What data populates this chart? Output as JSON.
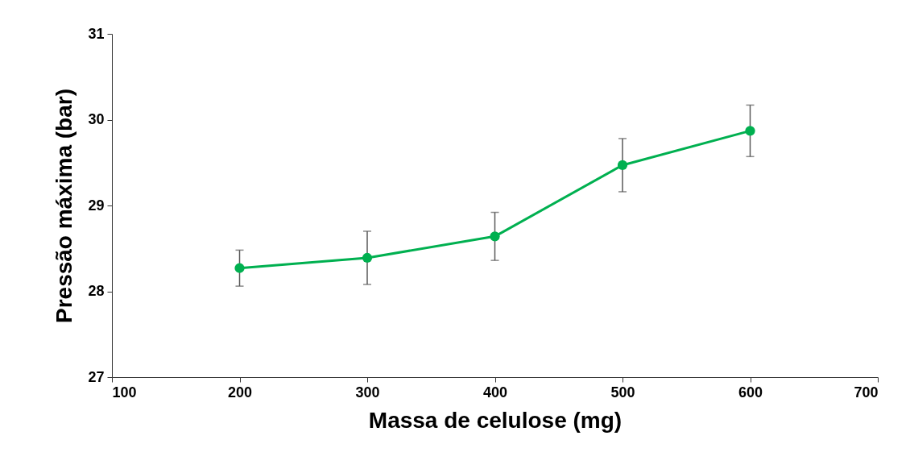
{
  "chart_data": {
    "type": "line",
    "xlabel": "Massa de celulose (mg)",
    "ylabel": "Pressão máxima (bar)",
    "x": [
      200,
      300,
      400,
      500,
      600
    ],
    "series": [
      {
        "color": "#00b050",
        "values": [
          28.27,
          28.39,
          28.64,
          29.47,
          29.87
        ],
        "errors": [
          0.21,
          0.31,
          0.28,
          0.31,
          0.3
        ]
      }
    ],
    "xlim": [
      100,
      700
    ],
    "xticks": [
      100,
      200,
      300,
      400,
      500,
      600,
      700
    ],
    "ylim": [
      27,
      31
    ],
    "yticks": [
      27,
      28,
      29,
      30,
      31
    ],
    "grid": false,
    "marker": "circle",
    "line_style": "solid"
  }
}
